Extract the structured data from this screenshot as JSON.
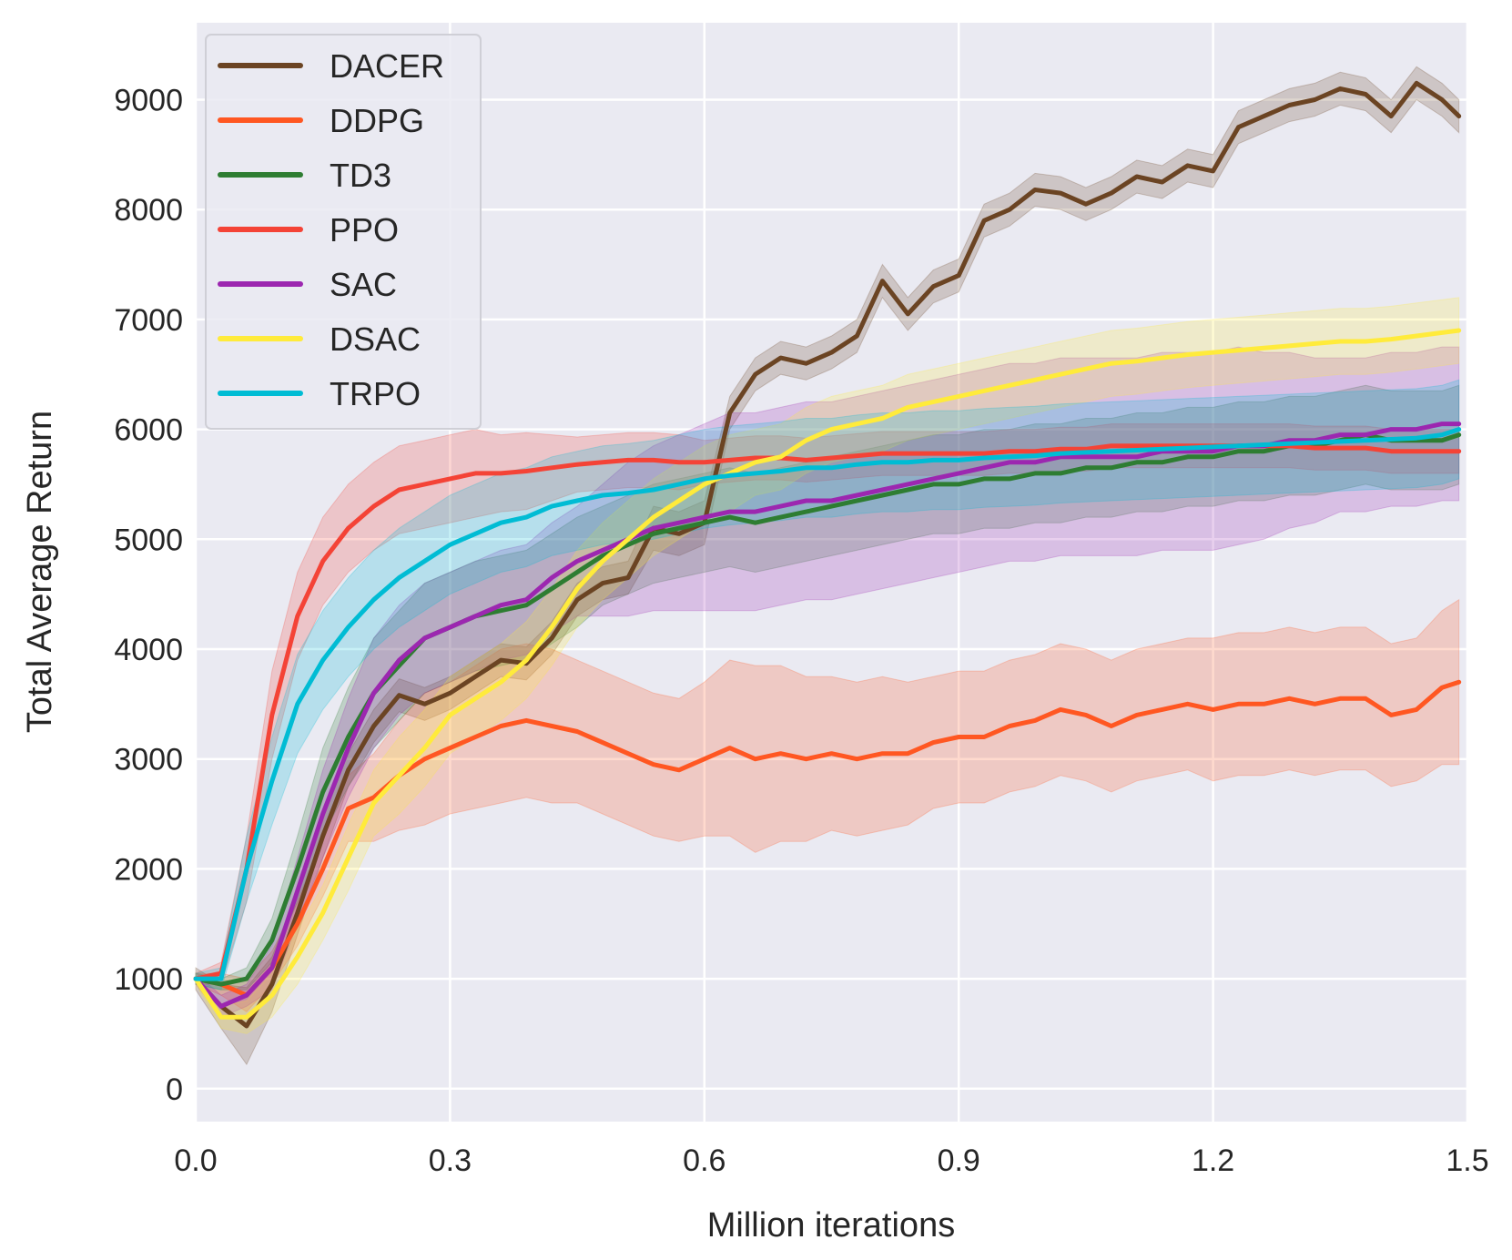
{
  "chart_data": {
    "type": "line",
    "title": "",
    "xlabel": "Million iterations",
    "ylabel": "Total Average Return",
    "xlim": [
      0,
      1.5
    ],
    "ylim": [
      -300,
      9700
    ],
    "xticks": [
      0.0,
      0.3,
      0.6,
      0.9,
      1.2,
      1.5
    ],
    "xtick_labels": [
      "0.0",
      "0.3",
      "0.6",
      "0.9",
      "1.2",
      "1.5"
    ],
    "yticks": [
      0,
      1000,
      2000,
      3000,
      4000,
      5000,
      6000,
      7000,
      8000,
      9000
    ],
    "ytick_labels": [
      "0",
      "1000",
      "2000",
      "3000",
      "4000",
      "5000",
      "6000",
      "7000",
      "8000",
      "9000"
    ],
    "grid": true,
    "legend_position": "upper-left",
    "x": [
      0.0,
      0.03,
      0.06,
      0.09,
      0.12,
      0.15,
      0.18,
      0.21,
      0.24,
      0.27,
      0.3,
      0.33,
      0.36,
      0.39,
      0.42,
      0.45,
      0.48,
      0.51,
      0.54,
      0.57,
      0.6,
      0.63,
      0.66,
      0.69,
      0.72,
      0.75,
      0.78,
      0.81,
      0.84,
      0.87,
      0.9,
      0.93,
      0.96,
      0.99,
      1.02,
      1.05,
      1.08,
      1.11,
      1.14,
      1.17,
      1.2,
      1.23,
      1.26,
      1.29,
      1.32,
      1.35,
      1.38,
      1.41,
      1.44,
      1.47,
      1.49
    ],
    "series": [
      {
        "name": "DACER",
        "color": "#6b4423",
        "values": [
          1000,
          750,
          570,
          950,
          1600,
          2300,
          2900,
          3300,
          3580,
          3500,
          3600,
          3750,
          3900,
          3870,
          4100,
          4450,
          4600,
          4650,
          5100,
          5050,
          5150,
          6150,
          6500,
          6650,
          6600,
          6700,
          6850,
          7350,
          7050,
          7300,
          7400,
          7900,
          8000,
          8180,
          8150,
          8050,
          8150,
          8300,
          8250,
          8400,
          8350,
          8750,
          8850,
          8950,
          9000,
          9100,
          9050,
          8850,
          9150,
          9000,
          8850
        ],
        "spread": [
          100,
          200,
          350,
          250,
          200,
          200,
          150,
          150,
          150,
          150,
          150,
          150,
          150,
          150,
          150,
          150,
          150,
          150,
          200,
          200,
          200,
          150,
          150,
          150,
          150,
          150,
          150,
          150,
          150,
          150,
          150,
          150,
          150,
          150,
          150,
          150,
          150,
          150,
          150,
          150,
          150,
          150,
          150,
          150,
          150,
          150,
          150,
          150,
          150,
          150,
          150
        ]
      },
      {
        "name": "DDPG",
        "color": "#ff5722",
        "values": [
          1000,
          950,
          850,
          1100,
          1500,
          2000,
          2550,
          2650,
          2850,
          3000,
          3100,
          3200,
          3300,
          3350,
          3300,
          3250,
          3150,
          3050,
          2950,
          2900,
          3000,
          3100,
          3000,
          3050,
          3000,
          3050,
          3000,
          3050,
          3050,
          3150,
          3200,
          3200,
          3300,
          3350,
          3450,
          3400,
          3300,
          3400,
          3450,
          3500,
          3450,
          3500,
          3500,
          3550,
          3500,
          3550,
          3550,
          3400,
          3450,
          3650,
          3700
        ],
        "spread": [
          50,
          100,
          150,
          150,
          200,
          250,
          300,
          400,
          500,
          600,
          600,
          650,
          700,
          700,
          700,
          650,
          650,
          650,
          650,
          650,
          700,
          800,
          850,
          800,
          750,
          700,
          700,
          700,
          650,
          600,
          600,
          600,
          600,
          600,
          600,
          600,
          600,
          600,
          600,
          600,
          650,
          650,
          650,
          650,
          650,
          650,
          650,
          650,
          650,
          700,
          750
        ]
      },
      {
        "name": "TD3",
        "color": "#2e7d32",
        "values": [
          1000,
          950,
          1000,
          1350,
          2000,
          2700,
          3200,
          3600,
          3850,
          4100,
          4200,
          4300,
          4350,
          4400,
          4550,
          4700,
          4850,
          4950,
          5050,
          5100,
          5150,
          5200,
          5150,
          5200,
          5250,
          5300,
          5350,
          5400,
          5450,
          5500,
          5500,
          5550,
          5550,
          5600,
          5600,
          5650,
          5650,
          5700,
          5700,
          5750,
          5750,
          5800,
          5800,
          5850,
          5850,
          5900,
          5950,
          5900,
          5900,
          5900,
          5950
        ],
        "spread": [
          50,
          50,
          100,
          200,
          300,
          400,
          450,
          500,
          500,
          500,
          500,
          500,
          500,
          500,
          500,
          500,
          450,
          450,
          450,
          450,
          450,
          450,
          450,
          450,
          450,
          450,
          450,
          450,
          450,
          450,
          450,
          450,
          450,
          450,
          450,
          450,
          450,
          450,
          450,
          450,
          450,
          450,
          450,
          450,
          450,
          450,
          450,
          450,
          450,
          450,
          450
        ]
      },
      {
        "name": "PPO",
        "color": "#f44336",
        "values": [
          1000,
          1050,
          2000,
          3400,
          4300,
          4800,
          5100,
          5300,
          5450,
          5500,
          5550,
          5600,
          5600,
          5620,
          5650,
          5680,
          5700,
          5720,
          5720,
          5700,
          5700,
          5720,
          5740,
          5740,
          5720,
          5740,
          5760,
          5780,
          5780,
          5780,
          5780,
          5780,
          5800,
          5800,
          5820,
          5820,
          5850,
          5850,
          5850,
          5850,
          5850,
          5850,
          5850,
          5850,
          5830,
          5830,
          5830,
          5800,
          5800,
          5800,
          5800
        ],
        "spread": [
          50,
          100,
          300,
          400,
          400,
          400,
          400,
          400,
          400,
          400,
          400,
          400,
          350,
          350,
          300,
          250,
          250,
          250,
          250,
          250,
          200,
          200,
          200,
          200,
          200,
          200,
          200,
          200,
          200,
          200,
          200,
          200,
          200,
          200,
          200,
          200,
          200,
          200,
          200,
          200,
          200,
          200,
          200,
          200,
          200,
          200,
          200,
          200,
          200,
          200,
          200
        ]
      },
      {
        "name": "SAC",
        "color": "#9c27b0",
        "values": [
          1000,
          750,
          850,
          1100,
          1800,
          2500,
          3100,
          3600,
          3900,
          4100,
          4200,
          4300,
          4400,
          4450,
          4650,
          4800,
          4900,
          5000,
          5100,
          5150,
          5200,
          5250,
          5250,
          5300,
          5350,
          5350,
          5400,
          5450,
          5500,
          5550,
          5600,
          5650,
          5700,
          5700,
          5750,
          5750,
          5750,
          5750,
          5800,
          5800,
          5800,
          5850,
          5850,
          5900,
          5900,
          5950,
          5950,
          6000,
          6000,
          6050,
          6050
        ],
        "spread": [
          50,
          100,
          100,
          200,
          300,
          400,
          450,
          500,
          500,
          500,
          500,
          500,
          500,
          500,
          500,
          500,
          600,
          700,
          750,
          800,
          850,
          900,
          900,
          900,
          900,
          900,
          900,
          900,
          900,
          900,
          900,
          900,
          900,
          900,
          900,
          900,
          900,
          900,
          900,
          900,
          900,
          900,
          850,
          800,
          750,
          700,
          700,
          700,
          700,
          700,
          700
        ]
      },
      {
        "name": "DSAC",
        "color": "#ffeb3b",
        "values": [
          1000,
          650,
          650,
          850,
          1200,
          1600,
          2100,
          2600,
          2850,
          3100,
          3400,
          3550,
          3700,
          3900,
          4200,
          4550,
          4800,
          5000,
          5200,
          5350,
          5500,
          5600,
          5700,
          5750,
          5900,
          6000,
          6050,
          6100,
          6200,
          6250,
          6300,
          6350,
          6400,
          6450,
          6500,
          6550,
          6600,
          6620,
          6650,
          6680,
          6700,
          6720,
          6740,
          6760,
          6780,
          6800,
          6800,
          6820,
          6850,
          6880,
          6900
        ],
        "spread": [
          50,
          100,
          150,
          200,
          250,
          250,
          300,
          300,
          350,
          350,
          350,
          350,
          350,
          350,
          350,
          350,
          350,
          350,
          350,
          350,
          350,
          350,
          300,
          300,
          300,
          300,
          300,
          300,
          300,
          300,
          300,
          300,
          300,
          300,
          300,
          300,
          300,
          300,
          300,
          300,
          300,
          300,
          300,
          300,
          300,
          300,
          300,
          300,
          300,
          300,
          300
        ]
      },
      {
        "name": "TRPO",
        "color": "#00bcd4",
        "values": [
          1000,
          1000,
          2000,
          2800,
          3500,
          3900,
          4200,
          4450,
          4650,
          4800,
          4950,
          5050,
          5150,
          5200,
          5300,
          5350,
          5400,
          5420,
          5450,
          5500,
          5550,
          5580,
          5600,
          5620,
          5650,
          5650,
          5680,
          5700,
          5700,
          5720,
          5720,
          5740,
          5750,
          5760,
          5780,
          5790,
          5800,
          5810,
          5820,
          5830,
          5840,
          5850,
          5860,
          5870,
          5880,
          5890,
          5900,
          5910,
          5920,
          5950,
          6000
        ],
        "spread": [
          50,
          100,
          300,
          400,
          450,
          450,
          450,
          450,
          450,
          450,
          450,
          450,
          450,
          450,
          450,
          450,
          450,
          450,
          450,
          450,
          450,
          450,
          450,
          450,
          450,
          450,
          450,
          450,
          450,
          450,
          450,
          450,
          450,
          450,
          450,
          450,
          450,
          450,
          450,
          450,
          450,
          450,
          450,
          450,
          450,
          450,
          450,
          450,
          450,
          450,
          450
        ]
      }
    ]
  }
}
